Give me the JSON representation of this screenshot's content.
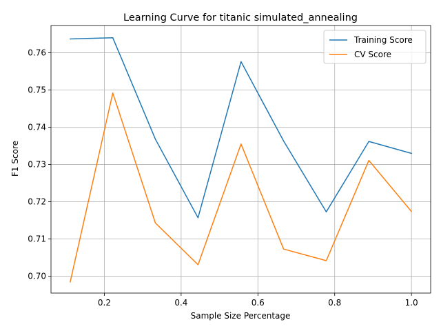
{
  "chart_data": {
    "type": "line",
    "title": "Learning Curve for titanic simulated_annealing",
    "xlabel": "Sample Size Percentage",
    "ylabel": "F1 Score",
    "xlim": [
      0.061,
      1.05
    ],
    "ylim": [
      0.6955,
      0.7673
    ],
    "x": [
      0.111,
      0.222,
      0.333,
      0.444,
      0.556,
      0.667,
      0.778,
      0.889,
      1.0
    ],
    "xticks": [
      0.2,
      0.4,
      0.6,
      0.8,
      1.0
    ],
    "xtick_labels": [
      "0.2",
      "0.4",
      "0.6",
      "0.8",
      "1.0"
    ],
    "yticks": [
      0.7,
      0.71,
      0.72,
      0.73,
      0.74,
      0.75,
      0.76
    ],
    "ytick_labels": [
      "0.70",
      "0.71",
      "0.72",
      "0.73",
      "0.74",
      "0.75",
      "0.76"
    ],
    "grid": true,
    "legend_position": "top-right",
    "series": [
      {
        "name": "Training Score",
        "color": "#1f77b4",
        "values": [
          0.7637,
          0.764,
          0.7368,
          0.7157,
          0.7576,
          0.7363,
          0.7173,
          0.7362,
          0.733
        ]
      },
      {
        "name": "CV Score",
        "color": "#ff7f0e",
        "values": [
          0.6985,
          0.7492,
          0.7143,
          0.7031,
          0.7355,
          0.7073,
          0.7042,
          0.7311,
          0.7174
        ]
      }
    ]
  }
}
